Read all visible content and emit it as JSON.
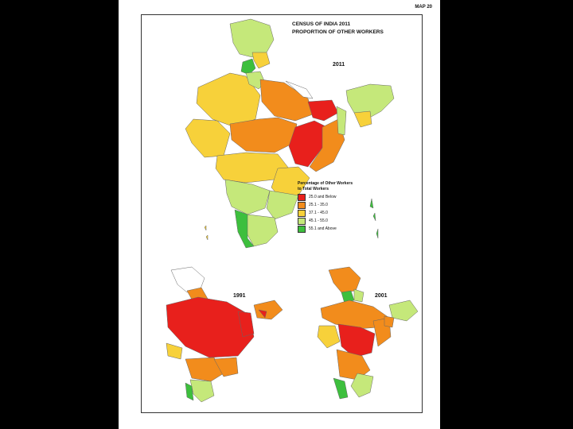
{
  "map_number": "MAP 20",
  "title_line1": "CENSUS OF INDIA 2011",
  "title_line2": "PROPORTION OF OTHER WORKERS",
  "main_year": "2011",
  "inset_years": [
    "1991",
    "2001"
  ],
  "legend": {
    "title_line1": "Percentage of Other Workers",
    "title_line2": "to Total Workers",
    "classes": [
      {
        "label": "25.0 and Below",
        "color": "#e8201c"
      },
      {
        "label": "25.1 - 35.0",
        "color": "#f28c1c"
      },
      {
        "label": "37.1 - 45.0",
        "color": "#f7d13a"
      },
      {
        "label": "45.1 - 55.0",
        "color": "#c5e87a"
      },
      {
        "label": "55.1 and Above",
        "color": "#3dbf3d"
      }
    ]
  }
}
